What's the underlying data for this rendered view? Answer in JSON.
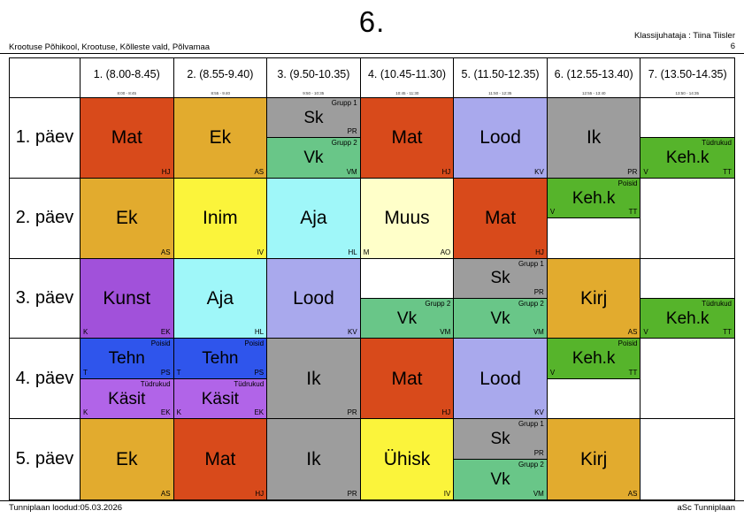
{
  "page": {
    "title": "6.",
    "school": "Krootuse Põhikool, Krootuse, Kõlleste vald, Põlvamaa",
    "class_teacher": "Klassijuhataja : Tiina Tiisler",
    "class_number": "6",
    "footer_left": "Tunniplaan loodud:05.03.2026",
    "footer_right": "aSc Tunniplaan"
  },
  "colors": {
    "red": "#d84a1b",
    "gold": "#e2ab2e",
    "yellow": "#fbf43b",
    "cyan": "#9ff7f9",
    "cream": "#ffffc9",
    "lavender": "#a9a9ed",
    "gray": "#9d9d9d",
    "softgreen": "#69c688",
    "green": "#56b42b",
    "purple": "#a151da",
    "blue": "#2f55ec",
    "violet": "#b164e8",
    "white": "#ffffff"
  },
  "columns": [
    {
      "label": "1. (8.00-8.45)",
      "time": "8:00 - 8:45"
    },
    {
      "label": "2. (8.55-9.40)",
      "time": "8:55 - 9:40"
    },
    {
      "label": "3. (9.50-10.35)",
      "time": "9:50 - 10:35"
    },
    {
      "label": "4. (10.45-11.30)",
      "time": "10:45 - 11:30"
    },
    {
      "label": "5. (11.50-12.35)",
      "time": "11:50 - 12:35"
    },
    {
      "label": "6. (12.55-13.40)",
      "time": "12:55 - 13:40"
    },
    {
      "label": "7. (13.50-14.35)",
      "time": "13:50 - 14:35"
    }
  ],
  "rows": [
    {
      "day": "1. päev",
      "cells": [
        {
          "type": "full",
          "lessons": [
            {
              "subject": "Mat",
              "color": "red",
              "tr": "",
              "bl": "",
              "br": "HJ"
            }
          ]
        },
        {
          "type": "full",
          "lessons": [
            {
              "subject": "Ek",
              "color": "gold",
              "tr": "",
              "bl": "",
              "br": "AS"
            }
          ]
        },
        {
          "type": "split",
          "lessons": [
            {
              "subject": "Sk",
              "color": "gray",
              "tr": "Grupp 1",
              "bl": "",
              "br": "PR"
            },
            {
              "subject": "Vk",
              "color": "softgreen",
              "tr": "Grupp 2",
              "bl": "",
              "br": "VM"
            }
          ]
        },
        {
          "type": "full",
          "lessons": [
            {
              "subject": "Mat",
              "color": "red",
              "tr": "",
              "bl": "",
              "br": "HJ"
            }
          ]
        },
        {
          "type": "full",
          "lessons": [
            {
              "subject": "Lood",
              "color": "lavender",
              "tr": "",
              "bl": "",
              "br": "KV"
            }
          ]
        },
        {
          "type": "full",
          "lessons": [
            {
              "subject": "Ik",
              "color": "gray",
              "tr": "",
              "bl": "",
              "br": "PR"
            }
          ]
        },
        {
          "type": "split",
          "lessons": [
            null,
            {
              "subject": "Keh.k",
              "color": "green",
              "tr": "Tüdrukud",
              "bl": "V",
              "br": "TT"
            }
          ]
        }
      ]
    },
    {
      "day": "2. päev",
      "cells": [
        {
          "type": "full",
          "lessons": [
            {
              "subject": "Ek",
              "color": "gold",
              "tr": "",
              "bl": "",
              "br": "AS"
            }
          ]
        },
        {
          "type": "full",
          "lessons": [
            {
              "subject": "Inim",
              "color": "yellow",
              "tr": "",
              "bl": "",
              "br": "IV"
            }
          ]
        },
        {
          "type": "full",
          "lessons": [
            {
              "subject": "Aja",
              "color": "cyan",
              "tr": "",
              "bl": "",
              "br": "HL"
            }
          ]
        },
        {
          "type": "full",
          "lessons": [
            {
              "subject": "Muus",
              "color": "cream",
              "tr": "",
              "bl": "M",
              "br": "AO"
            }
          ]
        },
        {
          "type": "full",
          "lessons": [
            {
              "subject": "Mat",
              "color": "red",
              "tr": "",
              "bl": "",
              "br": "HJ"
            }
          ]
        },
        {
          "type": "split",
          "lessons": [
            {
              "subject": "Keh.k",
              "color": "green",
              "tr": "Poisid",
              "bl": "V",
              "br": "TT"
            },
            null
          ]
        },
        {
          "type": "empty",
          "lessons": []
        }
      ]
    },
    {
      "day": "3. päev",
      "cells": [
        {
          "type": "full",
          "lessons": [
            {
              "subject": "Kunst",
              "color": "purple",
              "tr": "",
              "bl": "K",
              "br": "EK"
            }
          ]
        },
        {
          "type": "full",
          "lessons": [
            {
              "subject": "Aja",
              "color": "cyan",
              "tr": "",
              "bl": "",
              "br": "HL"
            }
          ]
        },
        {
          "type": "full",
          "lessons": [
            {
              "subject": "Lood",
              "color": "lavender",
              "tr": "",
              "bl": "",
              "br": "KV"
            }
          ]
        },
        {
          "type": "split",
          "lessons": [
            null,
            {
              "subject": "Vk",
              "color": "softgreen",
              "tr": "Grupp 2",
              "bl": "",
              "br": "VM"
            }
          ]
        },
        {
          "type": "split",
          "lessons": [
            {
              "subject": "Sk",
              "color": "gray",
              "tr": "Grupp 1",
              "bl": "",
              "br": "PR"
            },
            {
              "subject": "Vk",
              "color": "softgreen",
              "tr": "Grupp 2",
              "bl": "",
              "br": "VM"
            }
          ]
        },
        {
          "type": "full",
          "lessons": [
            {
              "subject": "Kirj",
              "color": "gold",
              "tr": "",
              "bl": "",
              "br": "AS"
            }
          ]
        },
        {
          "type": "split",
          "lessons": [
            null,
            {
              "subject": "Keh.k",
              "color": "green",
              "tr": "Tüdrukud",
              "bl": "V",
              "br": "TT"
            }
          ]
        }
      ]
    },
    {
      "day": "4. päev",
      "cells": [
        {
          "type": "split",
          "lessons": [
            {
              "subject": "Tehn",
              "color": "blue",
              "tr": "Poisid",
              "bl": "T",
              "br": "PS"
            },
            {
              "subject": "Käsit",
              "color": "violet",
              "tr": "Tüdrukud",
              "bl": "K",
              "br": "EK"
            }
          ]
        },
        {
          "type": "split",
          "lessons": [
            {
              "subject": "Tehn",
              "color": "blue",
              "tr": "Poisid",
              "bl": "T",
              "br": "PS"
            },
            {
              "subject": "Käsit",
              "color": "violet",
              "tr": "Tüdrukud",
              "bl": "K",
              "br": "EK"
            }
          ]
        },
        {
          "type": "full",
          "lessons": [
            {
              "subject": "Ik",
              "color": "gray",
              "tr": "",
              "bl": "",
              "br": "PR"
            }
          ]
        },
        {
          "type": "full",
          "lessons": [
            {
              "subject": "Mat",
              "color": "red",
              "tr": "",
              "bl": "",
              "br": "HJ"
            }
          ]
        },
        {
          "type": "full",
          "lessons": [
            {
              "subject": "Lood",
              "color": "lavender",
              "tr": "",
              "bl": "",
              "br": "KV"
            }
          ]
        },
        {
          "type": "split",
          "lessons": [
            {
              "subject": "Keh.k",
              "color": "green",
              "tr": "Poisid",
              "bl": "V",
              "br": "TT"
            },
            null
          ]
        },
        {
          "type": "empty",
          "lessons": []
        }
      ]
    },
    {
      "day": "5. päev",
      "cells": [
        {
          "type": "full",
          "lessons": [
            {
              "subject": "Ek",
              "color": "gold",
              "tr": "",
              "bl": "",
              "br": "AS"
            }
          ]
        },
        {
          "type": "full",
          "lessons": [
            {
              "subject": "Mat",
              "color": "red",
              "tr": "",
              "bl": "",
              "br": "HJ"
            }
          ]
        },
        {
          "type": "full",
          "lessons": [
            {
              "subject": "Ik",
              "color": "gray",
              "tr": "",
              "bl": "",
              "br": "PR"
            }
          ]
        },
        {
          "type": "full",
          "lessons": [
            {
              "subject": "Ühisk",
              "color": "yellow",
              "tr": "",
              "bl": "",
              "br": "IV"
            }
          ]
        },
        {
          "type": "split",
          "lessons": [
            {
              "subject": "Sk",
              "color": "gray",
              "tr": "Grupp 1",
              "bl": "",
              "br": "PR"
            },
            {
              "subject": "Vk",
              "color": "softgreen",
              "tr": "Grupp 2",
              "bl": "",
              "br": "VM"
            }
          ]
        },
        {
          "type": "full",
          "lessons": [
            {
              "subject": "Kirj",
              "color": "gold",
              "tr": "",
              "bl": "",
              "br": "AS"
            }
          ]
        },
        {
          "type": "empty",
          "lessons": []
        }
      ]
    }
  ]
}
